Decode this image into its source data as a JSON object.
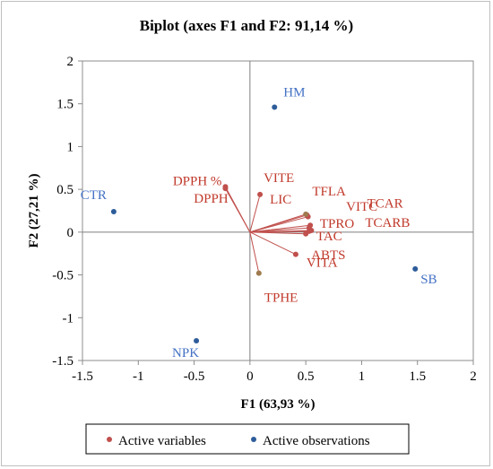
{
  "chart_data": {
    "type": "scatter",
    "title": "Biplot (axes F1 and F2: 91,14 %)",
    "xlabel": "F1 (63,93 %)",
    "ylabel": "F2 (27,21 %)",
    "xlim": [
      -1.5,
      2
    ],
    "ylim": [
      -1.5,
      2
    ],
    "x_ticks": [
      "-1.5",
      "-1",
      "-0.5",
      "0",
      "0.5",
      "1",
      "1.5",
      "2"
    ],
    "y_ticks": [
      "-1.5",
      "-1",
      "-0.5",
      "0",
      "0.5",
      "1",
      "1.5",
      "2"
    ],
    "grid": false,
    "legend_position": "bottom",
    "colors": {
      "variables": "#c0504d",
      "observations": "#2e5c9a",
      "var_label": "#c0392b",
      "obs_label": "#4472c4",
      "axis": "#7f7f7f"
    },
    "series": [
      {
        "name": "Active variables",
        "points": [
          {
            "label": "DPPH %",
            "x": -0.22,
            "y": 0.53
          },
          {
            "label": "DPPH",
            "x": -0.22,
            "y": 0.51
          },
          {
            "label": "VITE",
            "x": 0.09,
            "y": 0.44
          },
          {
            "label": "TFLA",
            "x": 0.51,
            "y": 0.2
          },
          {
            "label": "TCAR",
            "x": 0.52,
            "y": 0.18
          },
          {
            "label": "LIC",
            "x": 0.5,
            "y": 0.21
          },
          {
            "label": "VITC",
            "x": 0.54,
            "y": 0.08
          },
          {
            "label": "TPRO",
            "x": 0.53,
            "y": 0.05
          },
          {
            "label": "TCARB",
            "x": 0.55,
            "y": 0.02
          },
          {
            "label": "TAC",
            "x": 0.53,
            "y": 0.01
          },
          {
            "label": "ABTS",
            "x": 0.5,
            "y": -0.02
          },
          {
            "label": "VITA",
            "x": 0.41,
            "y": -0.26
          },
          {
            "label": "TPHE",
            "x": 0.08,
            "y": -0.48
          }
        ]
      },
      {
        "name": "Active observations",
        "points": [
          {
            "label": "HM",
            "x": 0.22,
            "y": 1.46
          },
          {
            "label": "CTR",
            "x": -1.22,
            "y": 0.24
          },
          {
            "label": "SB",
            "x": 1.48,
            "y": -0.43
          },
          {
            "label": "NPK",
            "x": -0.48,
            "y": -1.27
          }
        ]
      }
    ]
  }
}
